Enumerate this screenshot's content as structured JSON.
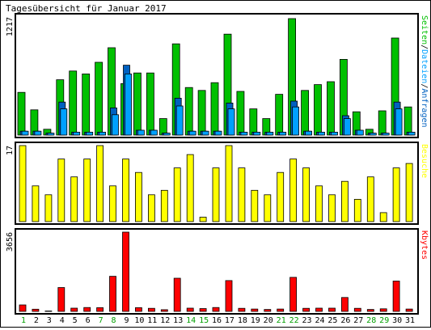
{
  "chart_data": {
    "type": "bar",
    "title": "Tagesübersicht für Januar 2017",
    "categories": [
      "1",
      "2",
      "3",
      "4",
      "5",
      "6",
      "7",
      "8",
      "9",
      "10",
      "11",
      "12",
      "13",
      "14",
      "15",
      "16",
      "17",
      "18",
      "19",
      "20",
      "21",
      "22",
      "23",
      "24",
      "25",
      "26",
      "27",
      "28",
      "29",
      "30",
      "31"
    ],
    "weekend_days": [
      "1",
      "7",
      "8",
      "14",
      "15",
      "21",
      "22",
      "28",
      "29"
    ],
    "colors": {
      "seiten": "#00c000",
      "dateien": "#00a0ff",
      "anfragen": "#0060c0",
      "besuche": "#ffff00",
      "kbytes": "#ff0000",
      "weekday_label": "#000000",
      "weekend_label": "#00a000"
    },
    "panels": [
      {
        "name": "hits",
        "ymax_label": "1217",
        "ymax": 1217,
        "legend": [
          "Seiten",
          "Dateien",
          "Anfragen"
        ],
        "legend_colors": [
          "#00c000",
          "#00a0ff",
          "#0060c0"
        ],
        "series": [
          {
            "name": "Seiten",
            "values": [
              440,
              260,
              60,
              570,
              660,
              630,
              750,
              900,
              530,
              640,
              640,
              170,
              940,
              490,
              460,
              540,
              1040,
              450,
              270,
              170,
              420,
              1200,
              460,
              520,
              550,
              780,
              240,
              60,
              250,
              1000,
              290
            ]
          },
          {
            "name": "Dateien",
            "values": [
              40,
              40,
              20,
              340,
              30,
              30,
              30,
              280,
              720,
              50,
              50,
              20,
              380,
              40,
              40,
              40,
              330,
              30,
              30,
              30,
              30,
              350,
              40,
              30,
              30,
              200,
              50,
              20,
              20,
              340,
              30
            ]
          },
          {
            "name": "Anfragen",
            "values": [
              40,
              40,
              20,
              270,
              30,
              30,
              30,
              210,
              630,
              50,
              50,
              20,
              300,
              40,
              40,
              40,
              270,
              30,
              30,
              30,
              30,
              290,
              40,
              30,
              30,
              170,
              50,
              20,
              20,
              270,
              30
            ]
          }
        ]
      },
      {
        "name": "visits",
        "ymax_label": "17",
        "ymax": 17,
        "legend": [
          "Besuche"
        ],
        "legend_colors": [
          "#ffff00"
        ],
        "series": [
          {
            "name": "Besuche",
            "values": [
              17,
              8,
              6,
              14,
              10,
              14,
              17,
              8,
              14,
              11,
              6,
              7,
              12,
              15,
              1,
              12,
              17,
              12,
              7,
              6,
              11,
              14,
              12,
              8,
              6,
              9,
              5,
              10,
              2,
              12,
              13
            ]
          }
        ]
      },
      {
        "name": "kbytes",
        "ymax_label": "3656",
        "ymax": 3656,
        "legend": [
          "Kbytes"
        ],
        "legend_colors": [
          "#ff0000"
        ],
        "series": [
          {
            "name": "Kbytes",
            "values": [
              300,
              100,
              20,
              1100,
              150,
              180,
              170,
              1620,
              3656,
              170,
              140,
              80,
              1530,
              150,
              130,
              180,
              1420,
              140,
              110,
              90,
              110,
              1570,
              140,
              150,
              150,
              640,
              140,
              90,
              120,
              1400,
              110
            ]
          }
        ]
      }
    ]
  }
}
